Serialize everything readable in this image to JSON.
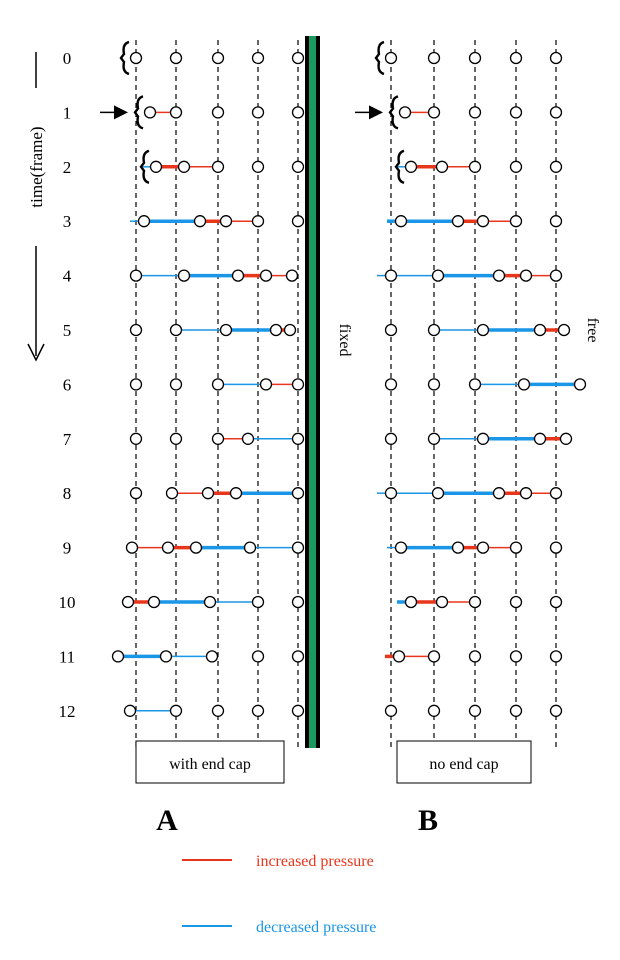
{
  "time_axis": {
    "label": "time(frame)",
    "frames": [
      "0",
      "1",
      "2",
      "3",
      "4",
      "5",
      "6",
      "7",
      "8",
      "9",
      "10",
      "11",
      "12"
    ]
  },
  "panel_a": {
    "letter": "A",
    "caption": "with end cap",
    "boundary_label": "fixed",
    "boundary_colors": [
      "#000000",
      "#1a9a60"
    ],
    "frames": [
      {
        "disp": [
          0,
          0,
          0,
          0,
          0
        ],
        "lines": [],
        "piston": true
      },
      {
        "disp": [
          14,
          0,
          0,
          0,
          0
        ],
        "lines": [
          [
            0,
            1,
            "inc",
            "thin"
          ]
        ],
        "piston": true,
        "arrow": true
      },
      {
        "disp": [
          20,
          8,
          0,
          0,
          0
        ],
        "lines": [
          [
            -1,
            0,
            "dec",
            "thin"
          ],
          [
            0,
            1,
            "inc",
            "thick"
          ],
          [
            1,
            2,
            "inc",
            "thin"
          ]
        ],
        "piston": true
      },
      {
        "disp": [
          8,
          24,
          8,
          0,
          0
        ],
        "lines": [
          [
            -1,
            0,
            "dec",
            "thin"
          ],
          [
            0,
            1,
            "dec",
            "thick"
          ],
          [
            1,
            2,
            "inc",
            "thick"
          ],
          [
            2,
            3,
            "inc",
            "thin"
          ]
        ]
      },
      {
        "disp": [
          0,
          8,
          20,
          8,
          -6
        ],
        "lines": [
          [
            0,
            1,
            "dec",
            "thin"
          ],
          [
            1,
            2,
            "dec",
            "thick"
          ],
          [
            2,
            3,
            "inc",
            "thick"
          ],
          [
            3,
            4,
            "inc",
            "thin"
          ]
        ]
      },
      {
        "disp": [
          0,
          0,
          8,
          18,
          -8
        ],
        "lines": [
          [
            1,
            2,
            "dec",
            "thin"
          ],
          [
            2,
            3,
            "dec",
            "thick"
          ],
          [
            3,
            4,
            "inc",
            "thick"
          ]
        ]
      },
      {
        "disp": [
          0,
          0,
          0,
          8,
          0
        ],
        "lines": [
          [
            2,
            3,
            "dec",
            "thin"
          ],
          [
            3,
            4,
            "inc",
            "thin"
          ]
        ]
      },
      {
        "disp": [
          0,
          0,
          0,
          -10,
          0
        ],
        "lines": [
          [
            2,
            3,
            "inc",
            "thin"
          ],
          [
            3,
            4,
            "dec",
            "thin"
          ]
        ]
      },
      {
        "disp": [
          0,
          -4,
          -10,
          -22,
          0
        ],
        "lines": [
          [
            1,
            2,
            "inc",
            "thin"
          ],
          [
            2,
            3,
            "inc",
            "thick"
          ],
          [
            3,
            4,
            "dec",
            "thick"
          ]
        ]
      },
      {
        "disp": [
          -4,
          -8,
          -22,
          -8,
          0
        ],
        "lines": [
          [
            0,
            1,
            "inc",
            "thin"
          ],
          [
            1,
            2,
            "inc",
            "thick"
          ],
          [
            2,
            3,
            "dec",
            "thick"
          ],
          [
            3,
            4,
            "dec",
            "thin"
          ]
        ]
      },
      {
        "disp": [
          -8,
          -22,
          -8,
          0,
          0
        ],
        "lines": [
          [
            0,
            1,
            "inc",
            "thick"
          ],
          [
            1,
            2,
            "dec",
            "thick"
          ],
          [
            2,
            3,
            "dec",
            "thin"
          ]
        ]
      },
      {
        "disp": [
          -18,
          -10,
          -6,
          0,
          0
        ],
        "lines": [
          [
            0,
            1,
            "dec",
            "thick"
          ],
          [
            1,
            2,
            "dec",
            "thin"
          ]
        ]
      },
      {
        "disp": [
          -6,
          0,
          0,
          0,
          0
        ],
        "lines": [
          [
            0,
            1,
            "dec",
            "thin"
          ]
        ]
      }
    ]
  },
  "panel_b": {
    "letter": "B",
    "caption": "no end cap",
    "boundary_label": "free",
    "frames": [
      {
        "disp": [
          0,
          0,
          0,
          0,
          0
        ],
        "lines": [],
        "piston": true
      },
      {
        "disp": [
          14,
          0,
          0,
          0,
          0
        ],
        "lines": [
          [
            0,
            1,
            "inc",
            "thin"
          ]
        ],
        "piston": true,
        "arrow": true
      },
      {
        "disp": [
          20,
          8,
          0,
          0,
          0
        ],
        "lines": [
          [
            -1,
            0,
            "dec",
            "thin"
          ],
          [
            0,
            1,
            "inc",
            "thick"
          ],
          [
            1,
            2,
            "inc",
            "thin"
          ]
        ],
        "piston": true
      },
      {
        "disp": [
          10,
          24,
          8,
          0,
          0
        ],
        "lines": [
          [
            -1,
            0,
            "dec",
            "thick"
          ],
          [
            0,
            1,
            "dec",
            "thick"
          ],
          [
            1,
            2,
            "inc",
            "thick"
          ],
          [
            2,
            3,
            "inc",
            "thin"
          ]
        ]
      },
      {
        "disp": [
          0,
          4,
          24,
          10,
          0
        ],
        "lines": [
          [
            -1,
            0,
            "dec",
            "thin"
          ],
          [
            0,
            1,
            "dec",
            "thin"
          ],
          [
            1,
            2,
            "dec",
            "thick"
          ],
          [
            2,
            3,
            "inc",
            "thick"
          ],
          [
            3,
            4,
            "inc",
            "thin"
          ]
        ]
      },
      {
        "disp": [
          0,
          0,
          8,
          24,
          8
        ],
        "lines": [
          [
            1,
            2,
            "dec",
            "thin"
          ],
          [
            2,
            3,
            "dec",
            "thick"
          ],
          [
            3,
            4,
            "inc",
            "thick"
          ]
        ]
      },
      {
        "disp": [
          0,
          0,
          0,
          8,
          24
        ],
        "lines": [
          [
            2,
            3,
            "dec",
            "thin"
          ],
          [
            3,
            4,
            "dec",
            "thick"
          ]
        ]
      },
      {
        "disp": [
          0,
          0,
          8,
          24,
          10
        ],
        "lines": [
          [
            1,
            2,
            "dec",
            "thin"
          ],
          [
            2,
            3,
            "dec",
            "thick"
          ],
          [
            3,
            4,
            "inc",
            "thick"
          ]
        ]
      },
      {
        "disp": [
          0,
          4,
          24,
          10,
          0
        ],
        "lines": [
          [
            -1,
            0,
            "dec",
            "thin"
          ],
          [
            0,
            1,
            "dec",
            "thin"
          ],
          [
            1,
            2,
            "dec",
            "thick"
          ],
          [
            2,
            3,
            "inc",
            "thick"
          ],
          [
            3,
            4,
            "inc",
            "thin"
          ]
        ]
      },
      {
        "disp": [
          10,
          24,
          8,
          0,
          0
        ],
        "lines": [
          [
            -1,
            0,
            "dec",
            "thin"
          ],
          [
            0,
            1,
            "dec",
            "thick"
          ],
          [
            1,
            2,
            "inc",
            "thick"
          ],
          [
            2,
            3,
            "inc",
            "thin"
          ]
        ]
      },
      {
        "disp": [
          20,
          8,
          0,
          0,
          0
        ],
        "lines": [
          [
            -1,
            0,
            "dec",
            "thick"
          ],
          [
            0,
            1,
            "inc",
            "thick"
          ],
          [
            1,
            2,
            "inc",
            "thin"
          ]
        ]
      },
      {
        "disp": [
          8,
          0,
          0,
          0,
          0
        ],
        "lines": [
          [
            -1,
            0,
            "inc",
            "thick"
          ],
          [
            0,
            1,
            "inc",
            "thin"
          ]
        ]
      },
      {
        "disp": [
          0,
          0,
          0,
          0,
          0
        ],
        "lines": []
      }
    ]
  },
  "legend": [
    {
      "label": "increased pressure",
      "color": "#e8361c",
      "key": "inc"
    },
    {
      "label": "decreased pressure",
      "color": "#1a96e6",
      "key": "dec"
    }
  ]
}
